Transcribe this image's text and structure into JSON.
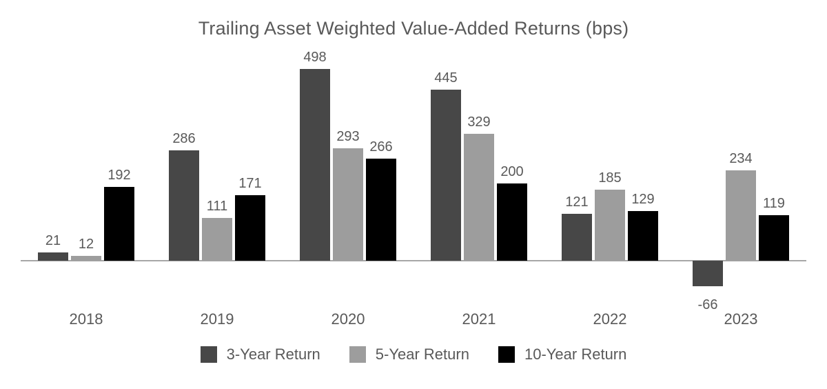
{
  "chart_data": {
    "type": "bar",
    "title": "Trailing Asset Weighted Value-Added Returns (bps)",
    "categories": [
      "2018",
      "2019",
      "2020",
      "2021",
      "2022",
      "2023"
    ],
    "series": [
      {
        "name": "3-Year Return",
        "color": "#474747",
        "values": [
          21,
          286,
          498,
          445,
          121,
          -66
        ]
      },
      {
        "name": "5-Year Return",
        "color": "#9d9d9d",
        "values": [
          12,
          111,
          293,
          329,
          185,
          234
        ]
      },
      {
        "name": "10-Year Return",
        "color": "#000000",
        "values": [
          192,
          171,
          266,
          200,
          129,
          119
        ]
      }
    ],
    "value_labels": true,
    "xlabel": "",
    "ylabel": "",
    "axis": {
      "baseline_value": 0,
      "ylim": [
        -100,
        550
      ],
      "grid": false,
      "x_axis_line_color": "#a6a6a6"
    },
    "legend": {
      "position": "bottom"
    },
    "text_color": "#595959",
    "background_color": "#ffffff"
  }
}
